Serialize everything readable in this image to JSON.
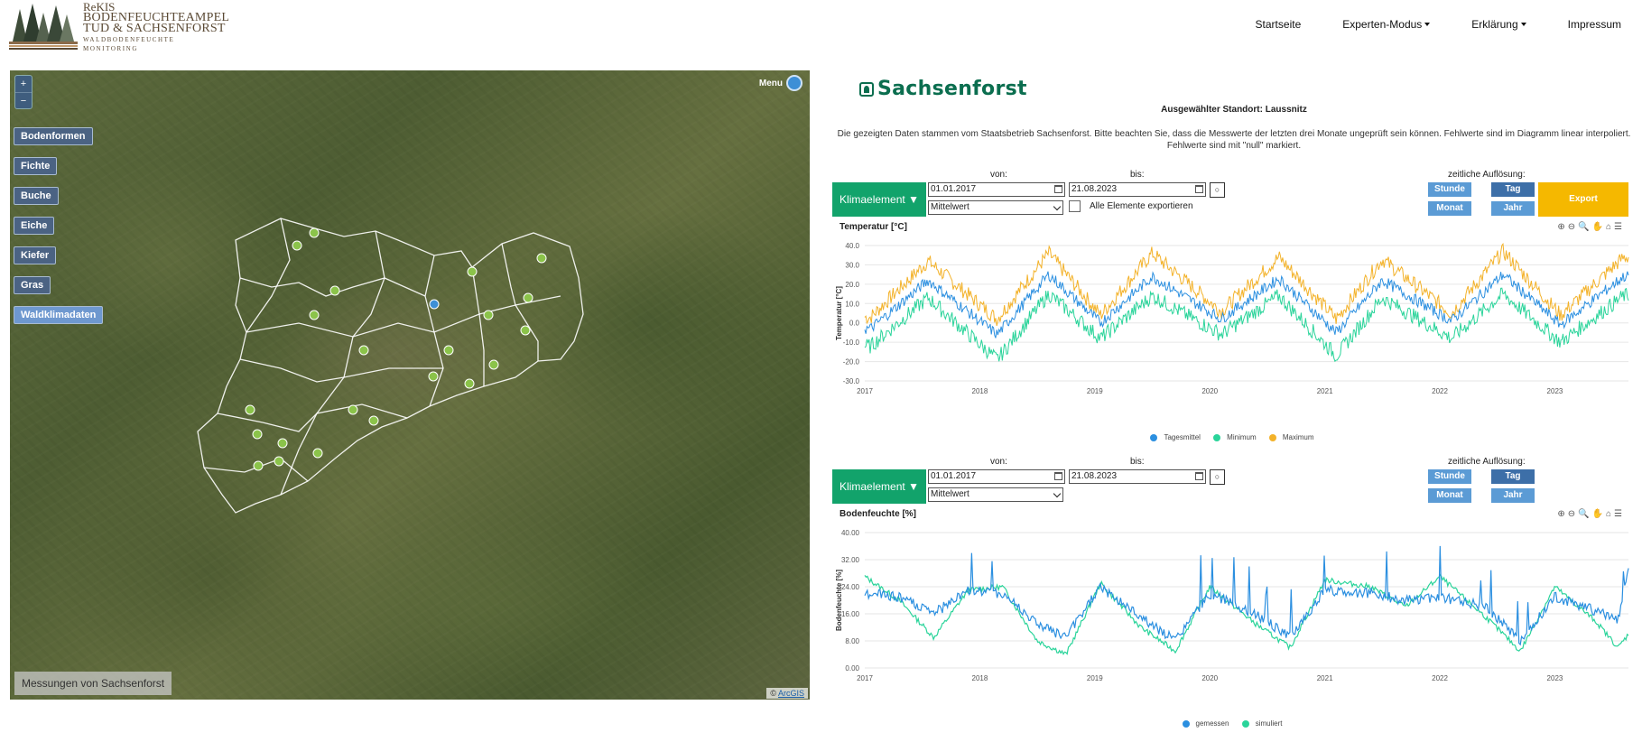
{
  "brand": {
    "line1": "ReKIS",
    "line2": "BODENFEUCHTEAMPEL",
    "line3": "TUD & SACHSENFORST",
    "line4": "WALDBODENFEUCHTE",
    "line5": "MONITORING"
  },
  "nav": {
    "home": "Startseite",
    "expert": "Experten-Modus",
    "explain": "Erklärung",
    "imprint": "Impressum"
  },
  "map": {
    "zoom_in": "+",
    "zoom_out": "−",
    "menu_label": "Menu",
    "layers": [
      "Bodenformen",
      "Fichte",
      "Buche",
      "Eiche",
      "Kiefer",
      "Gras",
      "Waldklimadaten"
    ],
    "active_layer": "Waldklimadaten",
    "bottom_label": "Messungen von Sachsenforst",
    "attribution_prefix": "©",
    "attribution_link": "ArcGIS",
    "station_color": "#8bc34a",
    "selected_station_color": "#3d8fd6"
  },
  "panel": {
    "org_name": "Sachsenforst",
    "station_label": "Ausgewählter Standort: Laussnitz",
    "notice": "Die gezeigten Daten stammen vom Staatsbetrieb Sachsenforst. Bitte beachten Sie, dass die Messwerte der letzten drei Monate ungeprüft sein können. Fehlwerte sind im Diagramm linear interpoliert. Fehlwerte sind mit \"null\" markiert."
  },
  "controls1": {
    "element_button": "Klimaelement ▼",
    "from_label": "von:",
    "to_label": "bis:",
    "from_value": "01.01.2017",
    "to_value": "21.08.2023",
    "reset": "○",
    "aggregation": "Mittelwert",
    "export_all_label": "Alle Elemente exportieren",
    "resolution_label": "zeitliche Auflösung:",
    "res_hour": "Stunde",
    "res_day": "Tag",
    "res_month": "Monat",
    "res_year": "Jahr",
    "export_button": "Export"
  },
  "controls2": {
    "element_button": "Klimaelement ▼",
    "from_label": "von:",
    "to_label": "bis:",
    "from_value": "01.01.2017",
    "to_value": "21.08.2023",
    "reset": "○",
    "aggregation": "Mittelwert",
    "resolution_label": "zeitliche Auflösung:",
    "res_hour": "Stunde",
    "res_day": "Tag",
    "res_month": "Monat",
    "res_year": "Jahr"
  },
  "chart_tools": "⊕⊖🔍✋⌂☰",
  "chart_data": [
    {
      "type": "line",
      "title": "Temperatur [°C]",
      "ylabel": "Temperatur [°C]",
      "ylim": [
        -30,
        40
      ],
      "yticks": [
        "40.0",
        "30.0",
        "20.0",
        "10.0",
        "0.0",
        "-10.0",
        "-20.0",
        "-30.0"
      ],
      "xticks": [
        "2017",
        "2018",
        "2019",
        "2020",
        "2021",
        "2022",
        "2023"
      ],
      "xrange": [
        2017.0,
        2023.64
      ],
      "series": [
        {
          "name": "Tagesmittel",
          "color": "#2b8fe0"
        },
        {
          "name": "Minimum",
          "color": "#2ad49a"
        },
        {
          "name": "Maximum",
          "color": "#f3b22a"
        }
      ],
      "seasonal_peaks": [
        {
          "year": 2017.55,
          "max": 32,
          "mean": 22,
          "min": 13
        },
        {
          "year": 2018.6,
          "max": 36,
          "mean": 25,
          "min": 15
        },
        {
          "year": 2019.5,
          "max": 36,
          "mean": 24,
          "min": 14
        },
        {
          "year": 2020.6,
          "max": 34,
          "mean": 23,
          "min": 14
        },
        {
          "year": 2021.5,
          "max": 33,
          "mean": 22,
          "min": 13
        },
        {
          "year": 2022.55,
          "max": 37,
          "mean": 25,
          "min": 15
        },
        {
          "year": 2023.6,
          "max": 34,
          "mean": 24,
          "min": 14
        }
      ],
      "winter_lows": [
        {
          "year": 2017.05,
          "max": 3,
          "mean": -3,
          "min": -12
        },
        {
          "year": 2018.15,
          "max": 2,
          "mean": -6,
          "min": -19
        },
        {
          "year": 2019.05,
          "max": 4,
          "mean": 0,
          "min": -8
        },
        {
          "year": 2020.1,
          "max": 6,
          "mean": 2,
          "min": -6
        },
        {
          "year": 2021.1,
          "max": 2,
          "mean": -5,
          "min": -17
        },
        {
          "year": 2022.1,
          "max": 5,
          "mean": 1,
          "min": -8
        },
        {
          "year": 2023.05,
          "max": 4,
          "mean": -1,
          "min": -10
        }
      ]
    },
    {
      "type": "line",
      "title": "Bodenfeuchte [%]",
      "ylabel": "Bodenfeuchte [%]",
      "ylim": [
        0,
        40
      ],
      "yticks": [
        "40.00",
        "32.00",
        "24.00",
        "16.00",
        "8.00",
        "0.00"
      ],
      "xticks": [
        "2017",
        "2018",
        "2019",
        "2020",
        "2021",
        "2022",
        "2023"
      ],
      "xrange": [
        2017.0,
        2023.64
      ],
      "series": [
        {
          "name": "gemessen",
          "color": "#2b8fe0"
        },
        {
          "name": "simuliert",
          "color": "#2ad49a"
        }
      ],
      "keypoints": [
        {
          "year": 2017.0,
          "gemessen": 22,
          "simuliert": 27
        },
        {
          "year": 2017.3,
          "gemessen": 21,
          "simuliert": 20
        },
        {
          "year": 2017.6,
          "gemessen": 16,
          "simuliert": 9
        },
        {
          "year": 2017.9,
          "gemessen": 23,
          "simuliert": 23
        },
        {
          "year": 2018.2,
          "gemessen": 22,
          "simuliert": 24
        },
        {
          "year": 2018.5,
          "gemessen": 13,
          "simuliert": 8
        },
        {
          "year": 2018.75,
          "gemessen": 9,
          "simuliert": 4
        },
        {
          "year": 2019.05,
          "gemessen": 24,
          "simuliert": 25
        },
        {
          "year": 2019.4,
          "gemessen": 15,
          "simuliert": 12
        },
        {
          "year": 2019.7,
          "gemessen": 8,
          "simuliert": 5
        },
        {
          "year": 2020.0,
          "gemessen": 22,
          "simuliert": 24
        },
        {
          "year": 2020.4,
          "gemessen": 16,
          "simuliert": 13
        },
        {
          "year": 2020.7,
          "gemessen": 9,
          "simuliert": 6
        },
        {
          "year": 2021.0,
          "gemessen": 23,
          "simuliert": 26
        },
        {
          "year": 2021.4,
          "gemessen": 22,
          "simuliert": 24
        },
        {
          "year": 2021.7,
          "gemessen": 20,
          "simuliert": 18
        },
        {
          "year": 2022.0,
          "gemessen": 21,
          "simuliert": 27
        },
        {
          "year": 2022.4,
          "gemessen": 18,
          "simuliert": 15
        },
        {
          "year": 2022.7,
          "gemessen": 8,
          "simuliert": 5
        },
        {
          "year": 2023.0,
          "gemessen": 21,
          "simuliert": 24
        },
        {
          "year": 2023.35,
          "gemessen": 17,
          "simuliert": 14
        },
        {
          "year": 2023.55,
          "gemessen": 14,
          "simuliert": 6
        },
        {
          "year": 2023.64,
          "gemessen": 30,
          "simuliert": 10
        }
      ]
    }
  ]
}
